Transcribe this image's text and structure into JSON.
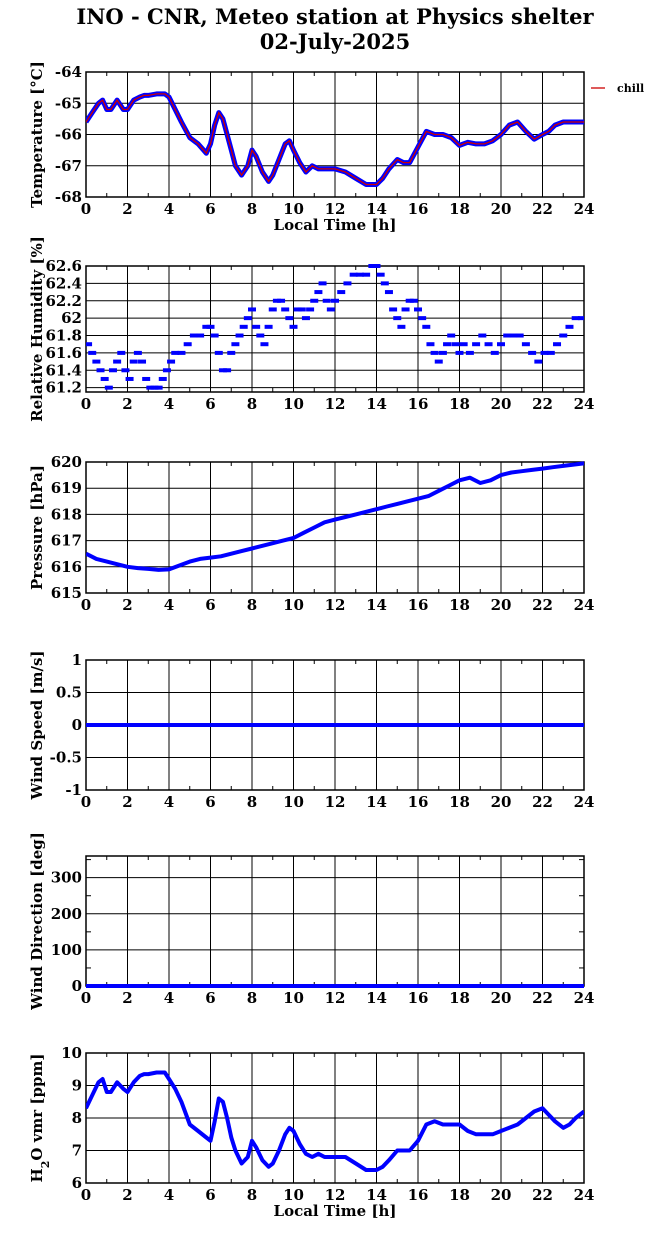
{
  "header": {
    "title": "INO - CNR, Meteo station at Physics shelter",
    "date": "02-July-2025"
  },
  "chart_data": [
    {
      "type": "line",
      "id": "temperature",
      "ylabel": "Temperature [°C]",
      "xlabel": "Local Time [h]",
      "xlim": [
        0,
        24
      ],
      "ylim": [
        -68,
        -64
      ],
      "yticks": [
        -68,
        -67,
        -66,
        -65,
        -64
      ],
      "xticks": [
        0,
        2,
        4,
        6,
        8,
        10,
        12,
        14,
        16,
        18,
        20,
        22,
        24
      ],
      "legend": [
        "chill"
      ],
      "legend_position": "right",
      "series": [
        {
          "name": "chill",
          "color": "#cc0000",
          "x": [
            0,
            0.3,
            0.6,
            0.8,
            1.0,
            1.2,
            1.5,
            1.8,
            2.0,
            2.3,
            2.6,
            2.8,
            3.0,
            3.4,
            3.8,
            4.0,
            4.3,
            4.6,
            5.0,
            5.4,
            5.8,
            6.0,
            6.2,
            6.4,
            6.6,
            6.8,
            7.0,
            7.2,
            7.5,
            7.8,
            8.0,
            8.2,
            8.5,
            8.8,
            9.0,
            9.3,
            9.6,
            9.8,
            10.0,
            10.3,
            10.6,
            10.9,
            11.2,
            11.5,
            12.0,
            12.5,
            13.0,
            13.5,
            14.0,
            14.3,
            14.6,
            15.0,
            15.3,
            15.6,
            16.0,
            16.4,
            16.8,
            17.2,
            17.6,
            18.0,
            18.4,
            18.8,
            19.2,
            19.6,
            20.0,
            20.4,
            20.8,
            21.2,
            21.6,
            22.0,
            22.3,
            22.6,
            23.0,
            23.3,
            23.6,
            24.0
          ],
          "y": [
            -65.6,
            -65.3,
            -65.0,
            -64.9,
            -65.2,
            -65.2,
            -64.9,
            -65.2,
            -65.2,
            -64.9,
            -64.8,
            -64.75,
            -64.75,
            -64.7,
            -64.7,
            -64.8,
            -65.2,
            -65.6,
            -66.1,
            -66.3,
            -66.6,
            -66.3,
            -65.7,
            -65.3,
            -65.5,
            -66.0,
            -66.5,
            -67.0,
            -67.3,
            -67.0,
            -66.5,
            -66.7,
            -67.2,
            -67.5,
            -67.3,
            -66.8,
            -66.3,
            -66.2,
            -66.5,
            -66.9,
            -67.2,
            -67.0,
            -67.1,
            -67.1,
            -67.1,
            -67.2,
            -67.4,
            -67.6,
            -67.6,
            -67.4,
            -67.1,
            -66.8,
            -66.9,
            -66.9,
            -66.4,
            -65.9,
            -66.0,
            -66.0,
            -66.1,
            -66.35,
            -66.25,
            -66.3,
            -66.3,
            -66.2,
            -66.0,
            -65.7,
            -65.6,
            -65.9,
            -66.15,
            -66.0,
            -65.9,
            -65.7,
            -65.6,
            -65.6,
            -65.6,
            -65.6
          ]
        }
      ]
    },
    {
      "type": "scatter",
      "id": "humidity",
      "ylabel": "Relative Humidity [%]",
      "xlim": [
        0,
        24
      ],
      "ylim": [
        61.15,
        62.6
      ],
      "yticks": [
        61.2,
        61.4,
        61.6,
        61.8,
        62,
        62.2,
        62.4,
        62.6
      ],
      "ytick_labels": [
        "61.2",
        "61.4",
        "61.6",
        "61.8",
        "62",
        "62.2",
        "62.4",
        "62.6"
      ],
      "xticks": [
        0,
        2,
        4,
        6,
        8,
        10,
        12,
        14,
        16,
        18,
        20,
        22,
        24
      ],
      "series": [
        {
          "name": "",
          "color": "#0000ff",
          "x": [
            0.1,
            0.3,
            0.5,
            0.7,
            0.9,
            1.1,
            1.3,
            1.5,
            1.7,
            1.9,
            2.1,
            2.3,
            2.5,
            2.7,
            2.9,
            3.1,
            3.3,
            3.5,
            3.7,
            3.9,
            4.1,
            4.3,
            4.6,
            4.9,
            5.2,
            5.5,
            5.8,
            6.0,
            6.2,
            6.4,
            6.6,
            6.8,
            7.0,
            7.2,
            7.4,
            7.6,
            7.8,
            8.0,
            8.2,
            8.4,
            8.6,
            8.8,
            9.0,
            9.2,
            9.4,
            9.6,
            9.8,
            10.0,
            10.2,
            10.4,
            10.6,
            10.8,
            11.0,
            11.2,
            11.4,
            11.6,
            11.8,
            12.0,
            12.3,
            12.6,
            12.9,
            13.2,
            13.5,
            13.8,
            14.0,
            14.2,
            14.4,
            14.6,
            14.8,
            15.0,
            15.2,
            15.4,
            15.6,
            15.8,
            16.0,
            16.2,
            16.4,
            16.6,
            16.8,
            17.0,
            17.2,
            17.4,
            17.6,
            17.8,
            18.0,
            18.2,
            18.5,
            18.8,
            19.1,
            19.4,
            19.7,
            20.0,
            20.3,
            20.6,
            20.9,
            21.2,
            21.5,
            21.8,
            22.1,
            22.4,
            22.7,
            23.0,
            23.3,
            23.6,
            23.9
          ],
          "y": [
            61.7,
            61.6,
            61.5,
            61.4,
            61.3,
            61.2,
            61.4,
            61.5,
            61.6,
            61.4,
            61.3,
            61.5,
            61.6,
            61.5,
            61.3,
            61.2,
            61.2,
            61.2,
            61.3,
            61.4,
            61.5,
            61.6,
            61.6,
            61.7,
            61.8,
            61.8,
            61.9,
            61.9,
            61.8,
            61.6,
            61.4,
            61.4,
            61.6,
            61.7,
            61.8,
            61.9,
            62.0,
            62.1,
            61.9,
            61.8,
            61.7,
            61.9,
            62.1,
            62.2,
            62.2,
            62.1,
            62.0,
            61.9,
            62.1,
            62.1,
            62.0,
            62.1,
            62.2,
            62.3,
            62.4,
            62.2,
            62.1,
            62.2,
            62.3,
            62.4,
            62.5,
            62.5,
            62.5,
            62.6,
            62.6,
            62.5,
            62.4,
            62.3,
            62.1,
            62.0,
            61.9,
            62.1,
            62.2,
            62.2,
            62.1,
            62.0,
            61.9,
            61.7,
            61.6,
            61.5,
            61.6,
            61.7,
            61.8,
            61.7,
            61.6,
            61.7,
            61.6,
            61.7,
            61.8,
            61.7,
            61.6,
            61.7,
            61.8,
            61.8,
            61.8,
            61.7,
            61.6,
            61.5,
            61.6,
            61.6,
            61.7,
            61.8,
            61.9,
            62.0,
            62.0
          ]
        }
      ]
    },
    {
      "type": "line",
      "id": "pressure",
      "ylabel": "Pressure [hPa]",
      "xlim": [
        0,
        24
      ],
      "ylim": [
        615,
        620
      ],
      "yticks": [
        615,
        616,
        617,
        618,
        619,
        620
      ],
      "xticks": [
        0,
        2,
        4,
        6,
        8,
        10,
        12,
        14,
        16,
        18,
        20,
        22,
        24
      ],
      "series": [
        {
          "name": "",
          "color": "#0000ff",
          "x": [
            0,
            0.5,
            1,
            1.5,
            2,
            2.5,
            3,
            3.5,
            4,
            4.5,
            5,
            5.5,
            6,
            6.5,
            7,
            7.5,
            8,
            8.5,
            9,
            9.5,
            10,
            10.5,
            11,
            11.5,
            12,
            12.5,
            13,
            13.5,
            14,
            14.5,
            15,
            15.5,
            16,
            16.5,
            17,
            17.5,
            18,
            18.5,
            19,
            19.5,
            20,
            20.5,
            21,
            21.5,
            22,
            22.5,
            23,
            23.5,
            24
          ],
          "y": [
            616.5,
            616.3,
            616.2,
            616.1,
            616.0,
            615.95,
            615.92,
            615.88,
            615.9,
            616.05,
            616.2,
            616.3,
            616.35,
            616.4,
            616.5,
            616.6,
            616.7,
            616.8,
            616.9,
            617.0,
            617.1,
            617.3,
            617.5,
            617.7,
            617.8,
            617.9,
            618.0,
            618.1,
            618.2,
            618.3,
            618.4,
            618.5,
            618.6,
            618.7,
            618.9,
            619.1,
            619.3,
            619.4,
            619.2,
            619.3,
            619.5,
            619.6,
            619.65,
            619.7,
            619.75,
            619.8,
            619.85,
            619.9,
            619.95
          ]
        }
      ]
    },
    {
      "type": "line",
      "id": "wind_speed",
      "ylabel": "Wind Speed [m/s]",
      "xlim": [
        0,
        24
      ],
      "ylim": [
        -1,
        1
      ],
      "yticks": [
        -1,
        -0.5,
        0,
        0.5,
        1
      ],
      "ytick_labels": [
        "-1",
        "-0.5",
        "0",
        "0.5",
        "1"
      ],
      "xticks": [
        0,
        2,
        4,
        6,
        8,
        10,
        12,
        14,
        16,
        18,
        20,
        22,
        24
      ],
      "series": [
        {
          "name": "",
          "color": "#0000ff",
          "x": [
            0,
            24
          ],
          "y": [
            0,
            0
          ]
        }
      ]
    },
    {
      "type": "line",
      "id": "wind_direction",
      "ylabel": "Wind Direction [deg]",
      "xlim": [
        0,
        24
      ],
      "ylim": [
        0,
        360
      ],
      "yticks": [
        0,
        100,
        200,
        300
      ],
      "minor_yticks": [
        50,
        150,
        250,
        350
      ],
      "xticks": [
        0,
        2,
        4,
        6,
        8,
        10,
        12,
        14,
        16,
        18,
        20,
        22,
        24
      ],
      "series": [
        {
          "name": "",
          "color": "#0000ff",
          "x": [
            0,
            24
          ],
          "y": [
            0,
            0
          ]
        }
      ]
    },
    {
      "type": "line",
      "id": "h2o",
      "ylabel": "H2O vmr [ppm]",
      "xlabel": "Local Time [h]",
      "xlim": [
        0,
        24
      ],
      "ylim": [
        6,
        10
      ],
      "yticks": [
        6,
        7,
        8,
        9,
        10
      ],
      "xticks": [
        0,
        2,
        4,
        6,
        8,
        10,
        12,
        14,
        16,
        18,
        20,
        22,
        24
      ],
      "series": [
        {
          "name": "",
          "color": "#0000ff",
          "x": [
            0,
            0.3,
            0.6,
            0.8,
            1.0,
            1.2,
            1.5,
            1.8,
            2.0,
            2.3,
            2.6,
            2.8,
            3.0,
            3.4,
            3.8,
            4.0,
            4.3,
            4.6,
            5.0,
            5.4,
            5.8,
            6.0,
            6.2,
            6.4,
            6.6,
            6.8,
            7.0,
            7.2,
            7.5,
            7.8,
            8.0,
            8.2,
            8.5,
            8.8,
            9.0,
            9.3,
            9.6,
            9.8,
            10.0,
            10.3,
            10.6,
            10.9,
            11.2,
            11.5,
            12.0,
            12.5,
            13.0,
            13.5,
            14.0,
            14.3,
            14.6,
            15.0,
            15.3,
            15.6,
            16.0,
            16.4,
            16.8,
            17.2,
            17.6,
            18.0,
            18.4,
            18.8,
            19.2,
            19.6,
            20.0,
            20.4,
            20.8,
            21.2,
            21.6,
            22.0,
            22.3,
            22.6,
            23.0,
            23.3,
            23.6,
            24.0
          ],
          "y": [
            8.3,
            8.7,
            9.1,
            9.2,
            8.8,
            8.8,
            9.1,
            8.9,
            8.8,
            9.1,
            9.3,
            9.35,
            9.35,
            9.4,
            9.4,
            9.2,
            8.9,
            8.5,
            7.8,
            7.6,
            7.4,
            7.3,
            7.9,
            8.6,
            8.5,
            8.0,
            7.4,
            7.0,
            6.6,
            6.8,
            7.3,
            7.1,
            6.7,
            6.5,
            6.6,
            7.0,
            7.5,
            7.7,
            7.6,
            7.2,
            6.9,
            6.8,
            6.9,
            6.8,
            6.8,
            6.8,
            6.6,
            6.4,
            6.4,
            6.5,
            6.7,
            7.0,
            7.0,
            7.0,
            7.3,
            7.8,
            7.9,
            7.8,
            7.8,
            7.8,
            7.6,
            7.5,
            7.5,
            7.5,
            7.6,
            7.7,
            7.8,
            8.0,
            8.2,
            8.3,
            8.1,
            7.9,
            7.7,
            7.8,
            8.0,
            8.2
          ]
        }
      ]
    }
  ]
}
